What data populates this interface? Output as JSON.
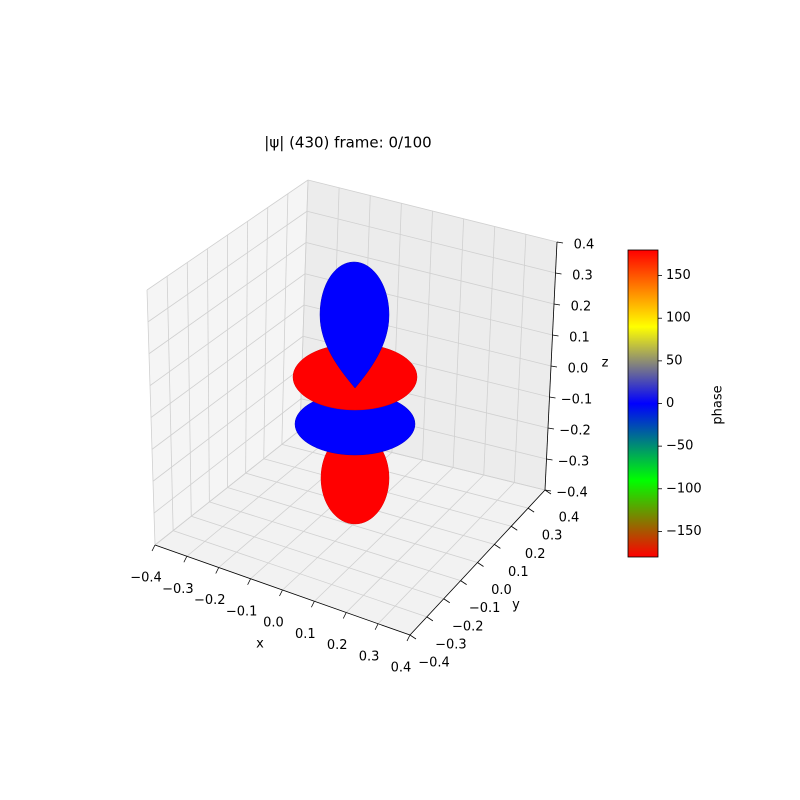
{
  "chart_data": {
    "type": "surface3d",
    "title": "|ψ| (430) frame: 0/100",
    "xlabel": "x",
    "ylabel": "y",
    "zlabel": "z",
    "xlim": [
      -0.4,
      0.4
    ],
    "ylim": [
      -0.4,
      0.4
    ],
    "zlim": [
      -0.4,
      0.4
    ],
    "xticks": [
      {
        "value": -0.4,
        "label": "−0.4"
      },
      {
        "value": -0.3,
        "label": "−0.3"
      },
      {
        "value": -0.2,
        "label": "−0.2"
      },
      {
        "value": -0.1,
        "label": "−0.1"
      },
      {
        "value": 0,
        "label": "0.0"
      },
      {
        "value": 0.1,
        "label": "0.1"
      },
      {
        "value": 0.2,
        "label": "0.2"
      },
      {
        "value": 0.3,
        "label": "0.3"
      },
      {
        "value": 0.4,
        "label": "0.4"
      }
    ],
    "yticks": [
      {
        "value": -0.4,
        "label": "−0.4"
      },
      {
        "value": -0.3,
        "label": "−0.3"
      },
      {
        "value": -0.2,
        "label": "−0.2"
      },
      {
        "value": -0.1,
        "label": "−0.1"
      },
      {
        "value": 0,
        "label": "0.0"
      },
      {
        "value": 0.1,
        "label": "0.1"
      },
      {
        "value": 0.2,
        "label": "0.2"
      },
      {
        "value": 0.3,
        "label": "0.3"
      },
      {
        "value": 0.4,
        "label": "0.4"
      }
    ],
    "zticks": [
      {
        "value": -0.4,
        "label": "−0.4"
      },
      {
        "value": -0.3,
        "label": "−0.3"
      },
      {
        "value": -0.2,
        "label": "−0.2"
      },
      {
        "value": -0.1,
        "label": "−0.1"
      },
      {
        "value": 0,
        "label": "0.0"
      },
      {
        "value": 0.1,
        "label": "0.1"
      },
      {
        "value": 0.2,
        "label": "0.2"
      },
      {
        "value": 0.3,
        "label": "0.3"
      },
      {
        "value": 0.4,
        "label": "0.4"
      }
    ],
    "grid": true,
    "colorbar": {
      "label": "phase",
      "lim": [
        -180,
        180
      ],
      "ticks": [
        {
          "value": -150,
          "label": "−150"
        },
        {
          "value": -100,
          "label": "−100"
        },
        {
          "value": -50,
          "label": "−50"
        },
        0,
        50,
        100,
        150
      ],
      "colors": [
        "#ff0000",
        "#7f7f00",
        "#00ff00",
        "#008080",
        "#0000ff",
        "#808080",
        "#ffff00",
        "#ff8000",
        "#ff0000"
      ]
    }
  }
}
